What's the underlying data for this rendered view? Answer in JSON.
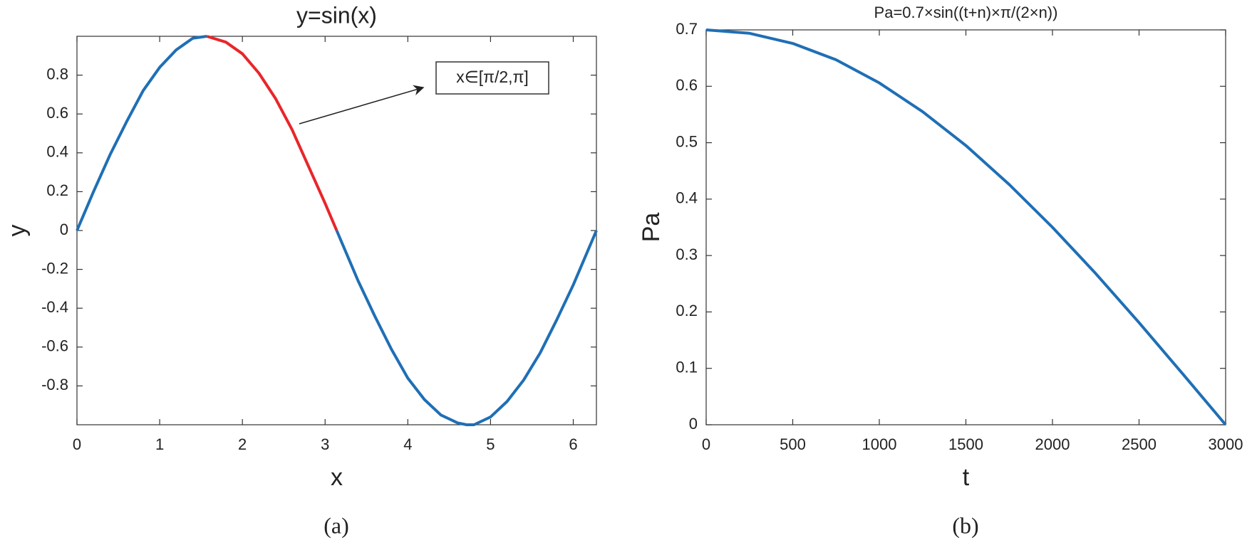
{
  "chart_data": [
    {
      "type": "line",
      "title": "y=sin(x)",
      "x_label": "x",
      "y_label": "y",
      "caption": "(a)",
      "xlim": [
        0,
        6.28
      ],
      "ylim": [
        -1,
        1
      ],
      "xticks": [
        0,
        1,
        2,
        3,
        4,
        5,
        6
      ],
      "yticks": [
        -0.8,
        -0.6,
        -0.4,
        -0.2,
        0,
        0.2,
        0.4,
        0.6,
        0.8
      ],
      "annotations": [
        {
          "text": "x∈[π/2,π]"
        }
      ],
      "series": [
        {
          "color": "#1f6fb5",
          "x": [
            0,
            0.2,
            0.4,
            0.6,
            0.8,
            1.0,
            1.2,
            1.4,
            1.57
          ],
          "values": [
            0,
            0.2,
            0.39,
            0.56,
            0.72,
            0.84,
            0.93,
            0.99,
            1
          ]
        },
        {
          "color": "#e8262a",
          "x": [
            1.57,
            1.8,
            2.0,
            2.2,
            2.4,
            2.6,
            2.8,
            3.0,
            3.14
          ],
          "values": [
            1,
            0.97,
            0.91,
            0.81,
            0.68,
            0.52,
            0.33,
            0.14,
            0
          ]
        },
        {
          "color": "#1f6fb5",
          "x": [
            3.14,
            3.4,
            3.6,
            3.8,
            4.0,
            4.2,
            4.4,
            4.6,
            4.71,
            4.8,
            5.0,
            5.2,
            5.4,
            5.6,
            5.8,
            6.0,
            6.28
          ],
          "values": [
            0,
            -0.26,
            -0.44,
            -0.61,
            -0.76,
            -0.87,
            -0.95,
            -0.99,
            -1,
            -1.0,
            -0.96,
            -0.88,
            -0.77,
            -0.63,
            -0.46,
            -0.28,
            0
          ]
        }
      ]
    },
    {
      "type": "line",
      "title": "Pa=0.7×sin((t+n)×π/(2×n))",
      "x_label": "t",
      "y_label": "Pa",
      "caption": "(b)",
      "xlim": [
        0,
        3000
      ],
      "ylim": [
        0,
        0.7
      ],
      "xticks": [
        0,
        500,
        1000,
        1500,
        2000,
        2500,
        3000
      ],
      "yticks": [
        0,
        0.1,
        0.2,
        0.3,
        0.4,
        0.5,
        0.6,
        0.7
      ],
      "series": [
        {
          "color": "#1f6fb5",
          "x": [
            0,
            250,
            500,
            750,
            1000,
            1250,
            1500,
            1750,
            2000,
            2250,
            2500,
            2750,
            3000
          ],
          "values": [
            0.7,
            0.694,
            0.676,
            0.647,
            0.606,
            0.555,
            0.495,
            0.426,
            0.35,
            0.268,
            0.181,
            0.091,
            0
          ]
        }
      ]
    }
  ]
}
